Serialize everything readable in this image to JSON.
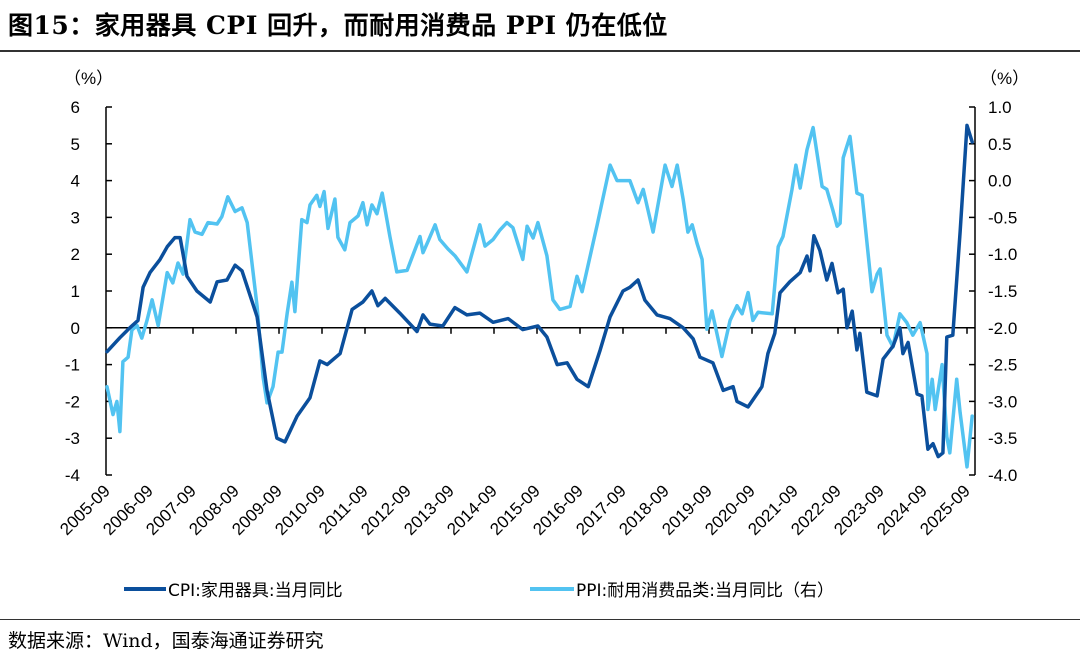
{
  "title": "图15：家用器具 CPI 回升，而耐用消费品 PPI 仍在低位",
  "source": "数据来源：Wind，国泰海通证券研究",
  "colors": {
    "cpi": "#0b4f9c",
    "ppi": "#52c3f1"
  },
  "chart_data": {
    "type": "line",
    "title": "家用器具 CPI 回升，而耐用消费品 PPI 仍在低位",
    "left_axis": {
      "unit_label": "（%）",
      "ylim": [
        -4,
        6
      ],
      "ticks": [
        "6",
        "5",
        "4",
        "3",
        "2",
        "1",
        "0",
        "-1",
        "-2",
        "-3",
        "-4"
      ]
    },
    "right_axis": {
      "unit_label": "（%）",
      "ylim": [
        -4.0,
        1.0
      ],
      "ticks": [
        "1.0",
        "0.5",
        "0.0",
        "-0.5",
        "-1.0",
        "-1.5",
        "-2.0",
        "-2.5",
        "-3.0",
        "-3.5",
        "-4.0"
      ]
    },
    "xlim": [
      2005.75,
      2025.92
    ],
    "x_ticks": [
      "2005-09",
      "2006-09",
      "2007-09",
      "2008-09",
      "2009-09",
      "2010-09",
      "2011-09",
      "2012-09",
      "2013-09",
      "2014-09",
      "2015-09",
      "2016-09",
      "2017-09",
      "2018-09",
      "2019-09",
      "2020-09",
      "2021-09",
      "2022-09",
      "2023-09",
      "2024-09",
      "2025-09"
    ],
    "legend_position": "bottom",
    "series": [
      {
        "name": "CPI:家用器具:当月同比",
        "axis": "left",
        "points": [
          [
            2005.75,
            -0.65
          ],
          [
            2006.05,
            -0.27
          ],
          [
            2006.28,
            0
          ],
          [
            2006.47,
            0.2
          ],
          [
            2006.59,
            1.1
          ],
          [
            2006.75,
            1.5
          ],
          [
            2006.98,
            1.85
          ],
          [
            2007.15,
            2.2
          ],
          [
            2007.33,
            2.45
          ],
          [
            2007.45,
            2.45
          ],
          [
            2007.61,
            1.4
          ],
          [
            2007.84,
            1.0
          ],
          [
            2008.15,
            0.7
          ],
          [
            2008.31,
            1.25
          ],
          [
            2008.54,
            1.3
          ],
          [
            2008.73,
            1.7
          ],
          [
            2008.89,
            1.55
          ],
          [
            2009.24,
            0.3
          ],
          [
            2009.47,
            -1.7
          ],
          [
            2009.7,
            -3.0
          ],
          [
            2009.89,
            -3.1
          ],
          [
            2010.17,
            -2.4
          ],
          [
            2010.47,
            -1.9
          ],
          [
            2010.7,
            -0.9
          ],
          [
            2010.87,
            -1.0
          ],
          [
            2011.17,
            -0.7
          ],
          [
            2011.45,
            0.5
          ],
          [
            2011.7,
            0.7
          ],
          [
            2011.91,
            1.0
          ],
          [
            2012.05,
            0.6
          ],
          [
            2012.22,
            0.8
          ],
          [
            2012.56,
            0.4
          ],
          [
            2012.8,
            0.1
          ],
          [
            2012.96,
            -0.1
          ],
          [
            2013.1,
            0.35
          ],
          [
            2013.26,
            0.1
          ],
          [
            2013.56,
            0.05
          ],
          [
            2013.84,
            0.55
          ],
          [
            2014.12,
            0.35
          ],
          [
            2014.42,
            0.4
          ],
          [
            2014.73,
            0.15
          ],
          [
            2015.08,
            0.25
          ],
          [
            2015.42,
            -0.05
          ],
          [
            2015.77,
            0.05
          ],
          [
            2015.98,
            -0.25
          ],
          [
            2016.22,
            -1.0
          ],
          [
            2016.45,
            -0.95
          ],
          [
            2016.68,
            -1.4
          ],
          [
            2016.94,
            -1.6
          ],
          [
            2017.22,
            -0.6
          ],
          [
            2017.45,
            0.3
          ],
          [
            2017.75,
            1.0
          ],
          [
            2017.91,
            1.1
          ],
          [
            2018.1,
            1.3
          ],
          [
            2018.26,
            0.75
          ],
          [
            2018.54,
            0.35
          ],
          [
            2018.84,
            0.25
          ],
          [
            2019.15,
            0.0
          ],
          [
            2019.38,
            -0.3
          ],
          [
            2019.54,
            -0.8
          ],
          [
            2019.84,
            -0.95
          ],
          [
            2020.08,
            -1.7
          ],
          [
            2020.31,
            -1.6
          ],
          [
            2020.4,
            -2.0
          ],
          [
            2020.66,
            -2.15
          ],
          [
            2020.98,
            -1.6
          ],
          [
            2021.12,
            -0.7
          ],
          [
            2021.28,
            -0.15
          ],
          [
            2021.4,
            0.95
          ],
          [
            2021.63,
            1.25
          ],
          [
            2021.87,
            1.5
          ],
          [
            2022.03,
            1.95
          ],
          [
            2022.1,
            1.55
          ],
          [
            2022.19,
            2.5
          ],
          [
            2022.33,
            2.1
          ],
          [
            2022.49,
            1.3
          ],
          [
            2022.61,
            1.75
          ],
          [
            2022.75,
            0.95
          ],
          [
            2022.87,
            1.05
          ],
          [
            2022.96,
            0
          ],
          [
            2023.08,
            0.45
          ],
          [
            2023.19,
            -0.6
          ],
          [
            2023.26,
            -0.15
          ],
          [
            2023.42,
            -1.75
          ],
          [
            2023.66,
            -1.85
          ],
          [
            2023.8,
            -0.85
          ],
          [
            2024.03,
            -0.5
          ],
          [
            2024.19,
            0
          ],
          [
            2024.26,
            -0.7
          ],
          [
            2024.38,
            -0.4
          ],
          [
            2024.59,
            -1.8
          ],
          [
            2024.7,
            -1.85
          ],
          [
            2024.84,
            -3.3
          ],
          [
            2024.96,
            -3.15
          ],
          [
            2025.08,
            -3.5
          ],
          [
            2025.19,
            -3.4
          ],
          [
            2025.28,
            -0.25
          ],
          [
            2025.42,
            -0.2
          ],
          [
            2025.59,
            2.6
          ],
          [
            2025.75,
            5.5
          ],
          [
            2025.87,
            5.05
          ]
        ]
      },
      {
        "name": "PPI:耐用消费品类:当月同比（右）",
        "axis": "right",
        "points": [
          [
            2005.75,
            -2.8
          ],
          [
            2005.89,
            -3.18
          ],
          [
            2005.98,
            -3.0
          ],
          [
            2006.05,
            -3.41
          ],
          [
            2006.12,
            -2.46
          ],
          [
            2006.24,
            -2.4
          ],
          [
            2006.33,
            -2.03
          ],
          [
            2006.45,
            -1.97
          ],
          [
            2006.56,
            -2.14
          ],
          [
            2006.68,
            -1.9
          ],
          [
            2006.8,
            -1.62
          ],
          [
            2006.94,
            -1.97
          ],
          [
            2007.15,
            -1.25
          ],
          [
            2007.28,
            -1.39
          ],
          [
            2007.4,
            -1.12
          ],
          [
            2007.52,
            -1.27
          ],
          [
            2007.68,
            -0.53
          ],
          [
            2007.8,
            -0.7
          ],
          [
            2007.96,
            -0.73
          ],
          [
            2008.1,
            -0.57
          ],
          [
            2008.31,
            -0.59
          ],
          [
            2008.42,
            -0.49
          ],
          [
            2008.56,
            -0.22
          ],
          [
            2008.73,
            -0.42
          ],
          [
            2008.89,
            -0.37
          ],
          [
            2009.01,
            -0.57
          ],
          [
            2009.24,
            -1.71
          ],
          [
            2009.38,
            -2.67
          ],
          [
            2009.47,
            -3.02
          ],
          [
            2009.61,
            -2.8
          ],
          [
            2009.73,
            -2.33
          ],
          [
            2009.82,
            -2.33
          ],
          [
            2009.94,
            -1.8
          ],
          [
            2010.05,
            -1.38
          ],
          [
            2010.12,
            -1.78
          ],
          [
            2010.28,
            -0.53
          ],
          [
            2010.4,
            -0.57
          ],
          [
            2010.47,
            -0.33
          ],
          [
            2010.63,
            -0.2
          ],
          [
            2010.7,
            -0.35
          ],
          [
            2010.8,
            -0.15
          ],
          [
            2010.89,
            -0.65
          ],
          [
            2011.05,
            -0.25
          ],
          [
            2011.12,
            -0.77
          ],
          [
            2011.28,
            -0.94
          ],
          [
            2011.4,
            -0.57
          ],
          [
            2011.59,
            -0.48
          ],
          [
            2011.7,
            -0.3
          ],
          [
            2011.8,
            -0.6
          ],
          [
            2011.91,
            -0.33
          ],
          [
            2012.03,
            -0.45
          ],
          [
            2012.15,
            -0.17
          ],
          [
            2012.33,
            -0.76
          ],
          [
            2012.49,
            -1.24
          ],
          [
            2012.73,
            -1.22
          ],
          [
            2013.03,
            -0.76
          ],
          [
            2013.1,
            -0.98
          ],
          [
            2013.22,
            -0.82
          ],
          [
            2013.38,
            -0.6
          ],
          [
            2013.49,
            -0.8
          ],
          [
            2013.68,
            -0.93
          ],
          [
            2013.84,
            -1.02
          ],
          [
            2014.12,
            -1.24
          ],
          [
            2014.42,
            -0.6
          ],
          [
            2014.54,
            -0.89
          ],
          [
            2014.73,
            -0.8
          ],
          [
            2014.89,
            -0.67
          ],
          [
            2015.05,
            -0.57
          ],
          [
            2015.19,
            -0.64
          ],
          [
            2015.42,
            -1.07
          ],
          [
            2015.52,
            -0.62
          ],
          [
            2015.66,
            -0.78
          ],
          [
            2015.77,
            -0.57
          ],
          [
            2015.98,
            -1.02
          ],
          [
            2016.12,
            -1.62
          ],
          [
            2016.28,
            -1.75
          ],
          [
            2016.52,
            -1.71
          ],
          [
            2016.68,
            -1.3
          ],
          [
            2016.8,
            -1.51
          ],
          [
            2017.15,
            -0.6
          ],
          [
            2017.45,
            0.21
          ],
          [
            2017.61,
            0.0
          ],
          [
            2017.91,
            0.0
          ],
          [
            2018.1,
            -0.3
          ],
          [
            2018.22,
            -0.12
          ],
          [
            2018.45,
            -0.7
          ],
          [
            2018.73,
            0.21
          ],
          [
            2018.89,
            -0.08
          ],
          [
            2019.01,
            0.21
          ],
          [
            2019.15,
            -0.26
          ],
          [
            2019.26,
            -0.7
          ],
          [
            2019.36,
            -0.6
          ],
          [
            2019.47,
            -0.85
          ],
          [
            2019.59,
            -1.07
          ],
          [
            2019.7,
            -2.02
          ],
          [
            2019.82,
            -1.77
          ],
          [
            2020.05,
            -2.39
          ],
          [
            2020.24,
            -1.9
          ],
          [
            2020.4,
            -1.7
          ],
          [
            2020.52,
            -1.81
          ],
          [
            2020.66,
            -1.52
          ],
          [
            2020.77,
            -1.9
          ],
          [
            2020.89,
            -1.79
          ],
          [
            2021.22,
            -1.81
          ],
          [
            2021.36,
            -0.9
          ],
          [
            2021.47,
            -0.76
          ],
          [
            2021.68,
            -0.12
          ],
          [
            2021.77,
            0.21
          ],
          [
            2021.87,
            -0.1
          ],
          [
            2022.03,
            0.42
          ],
          [
            2022.17,
            0.72
          ],
          [
            2022.38,
            -0.08
          ],
          [
            2022.49,
            -0.12
          ],
          [
            2022.63,
            -0.4
          ],
          [
            2022.73,
            -0.62
          ],
          [
            2022.8,
            -0.58
          ],
          [
            2022.87,
            0.31
          ],
          [
            2023.03,
            0.6
          ],
          [
            2023.19,
            -0.17
          ],
          [
            2023.31,
            -0.2
          ],
          [
            2023.54,
            -1.51
          ],
          [
            2023.66,
            -1.27
          ],
          [
            2023.73,
            -1.2
          ],
          [
            2023.89,
            -2.1
          ],
          [
            2024.03,
            -2.26
          ],
          [
            2024.19,
            -1.81
          ],
          [
            2024.35,
            -1.93
          ],
          [
            2024.49,
            -2.1
          ],
          [
            2024.66,
            -1.93
          ],
          [
            2024.82,
            -2.35
          ],
          [
            2024.84,
            -3.11
          ],
          [
            2024.94,
            -2.7
          ],
          [
            2025.01,
            -3.11
          ],
          [
            2025.17,
            -2.5
          ],
          [
            2025.28,
            -3.48
          ],
          [
            2025.35,
            -3.7
          ],
          [
            2025.51,
            -2.7
          ],
          [
            2025.59,
            -3.15
          ],
          [
            2025.75,
            -3.89
          ],
          [
            2025.87,
            -3.2
          ]
        ]
      }
    ]
  }
}
